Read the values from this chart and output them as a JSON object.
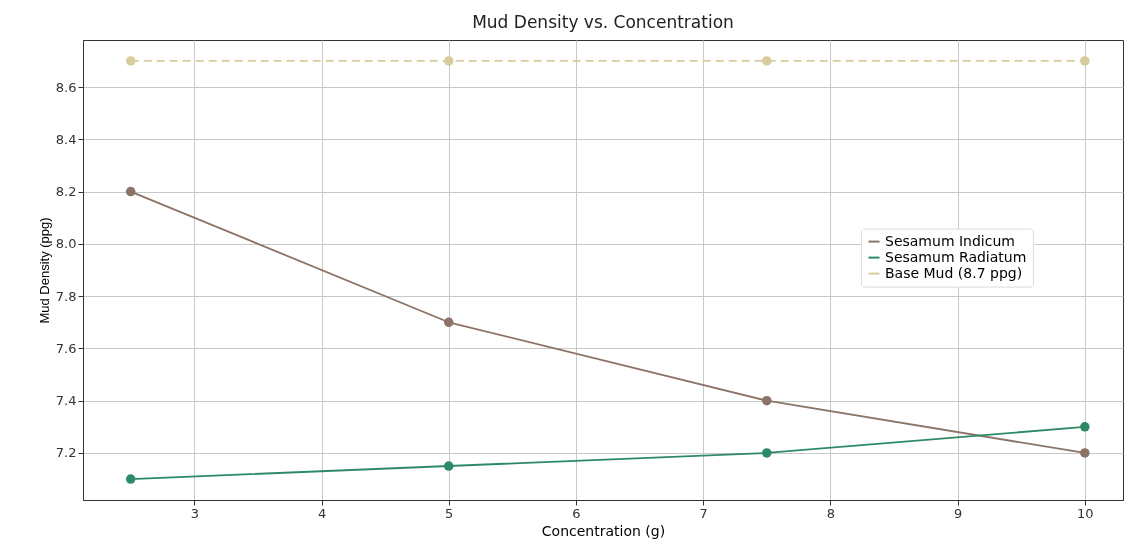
{
  "chart_data": {
    "type": "line",
    "title": "Mud Density vs. Concentration",
    "xlabel": "Concentration (g)",
    "ylabel": "Mud Density (ppg)",
    "x": [
      2.5,
      5,
      7.5,
      10
    ],
    "series": [
      {
        "name": "Sesamum Indicum",
        "color": "#8b7366",
        "values": [
          8.2,
          7.7,
          7.4,
          7.2
        ],
        "line_style": "solid"
      },
      {
        "name": "Sesamum Radiatum",
        "color": "#2e8a66",
        "values": [
          7.1,
          7.15,
          7.2,
          7.3
        ],
        "line_style": "solid"
      },
      {
        "name": "Base Mud (8.7 ppg)",
        "color": "#d8cc9c",
        "values": [
          8.7,
          8.7,
          8.7,
          8.7
        ],
        "line_style": "dashed"
      }
    ],
    "xlim": [
      2.125,
      10.3
    ],
    "xticks": [
      3,
      4,
      5,
      6,
      7,
      8,
      9,
      10
    ],
    "ylim": [
      7.02,
      8.78
    ],
    "yticks": [
      7.2,
      7.4,
      7.6,
      7.8,
      {
        "value": 8,
        "label": "8.0"
      },
      8.2,
      8.4,
      8.6
    ],
    "grid": true,
    "legend": "right",
    "marker": "circle"
  }
}
